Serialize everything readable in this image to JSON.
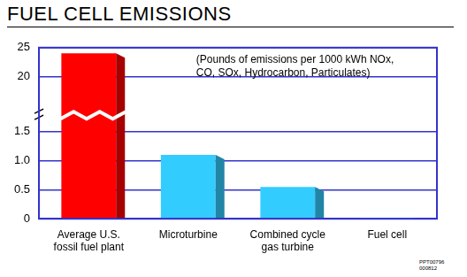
{
  "chart_data": {
    "type": "bar",
    "title": "FUEL CELL EMISSIONS",
    "annotation": [
      "(Pounds of emissions per 1000 kWh NOx,",
      "CO, SOx, Hydrocarbon, Particulates)"
    ],
    "footer": [
      "PPT00796",
      "000812"
    ],
    "categories": [
      [
        "Average U.S.",
        "fossil fuel plant"
      ],
      "Microturbine",
      [
        "Combined cycle",
        "gas turbine"
      ],
      "Fuel cell"
    ],
    "values": [
      24,
      1.1,
      0.55,
      0.02
    ],
    "colors": [
      "#ff0000",
      "#33ccff",
      "#33ccff",
      "#33ccff"
    ],
    "ylim": [
      0,
      25
    ],
    "yticks": [
      0,
      0.5,
      {
        "value": 1,
        "label": "1.0"
      },
      1.5,
      20,
      25
    ],
    "grid": true
  }
}
